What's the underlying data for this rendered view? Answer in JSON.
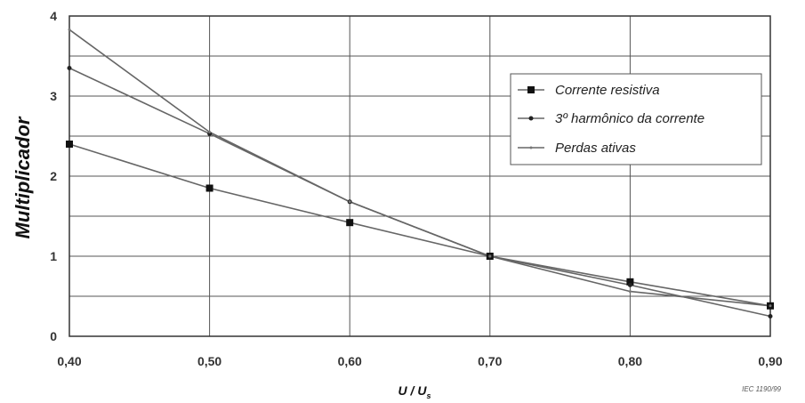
{
  "chart_data": {
    "type": "line",
    "title": "",
    "xlabel": "U / U",
    "xlabel_sub": "s",
    "ylabel": "Multiplicador",
    "x": [
      0.4,
      0.5,
      0.6,
      0.7,
      0.8,
      0.9
    ],
    "x_tick_labels": [
      "0,40",
      "0,50",
      "0,60",
      "0,70",
      "0,80",
      "0,90"
    ],
    "xlim": [
      0.4,
      0.9
    ],
    "ylim": [
      0,
      4
    ],
    "y_ticks": [
      0,
      1,
      2,
      3,
      4
    ],
    "y_tick_labels": [
      "0",
      "1",
      "2",
      "3",
      "4"
    ],
    "grid": true,
    "legend_position": "right",
    "series": [
      {
        "name": "Corrente resistiva",
        "marker": "square",
        "values": [
          2.4,
          1.85,
          1.42,
          1.0,
          0.68,
          0.38
        ]
      },
      {
        "name": "3º harmônico da corrente",
        "marker": "dot",
        "values": [
          3.35,
          2.53,
          1.68,
          1.0,
          0.64,
          0.25
        ]
      },
      {
        "name": "Perdas ativas",
        "marker": "tick",
        "values": [
          3.83,
          2.55,
          1.68,
          1.0,
          0.56,
          0.38
        ]
      }
    ],
    "note": "IEC   1190/99"
  }
}
